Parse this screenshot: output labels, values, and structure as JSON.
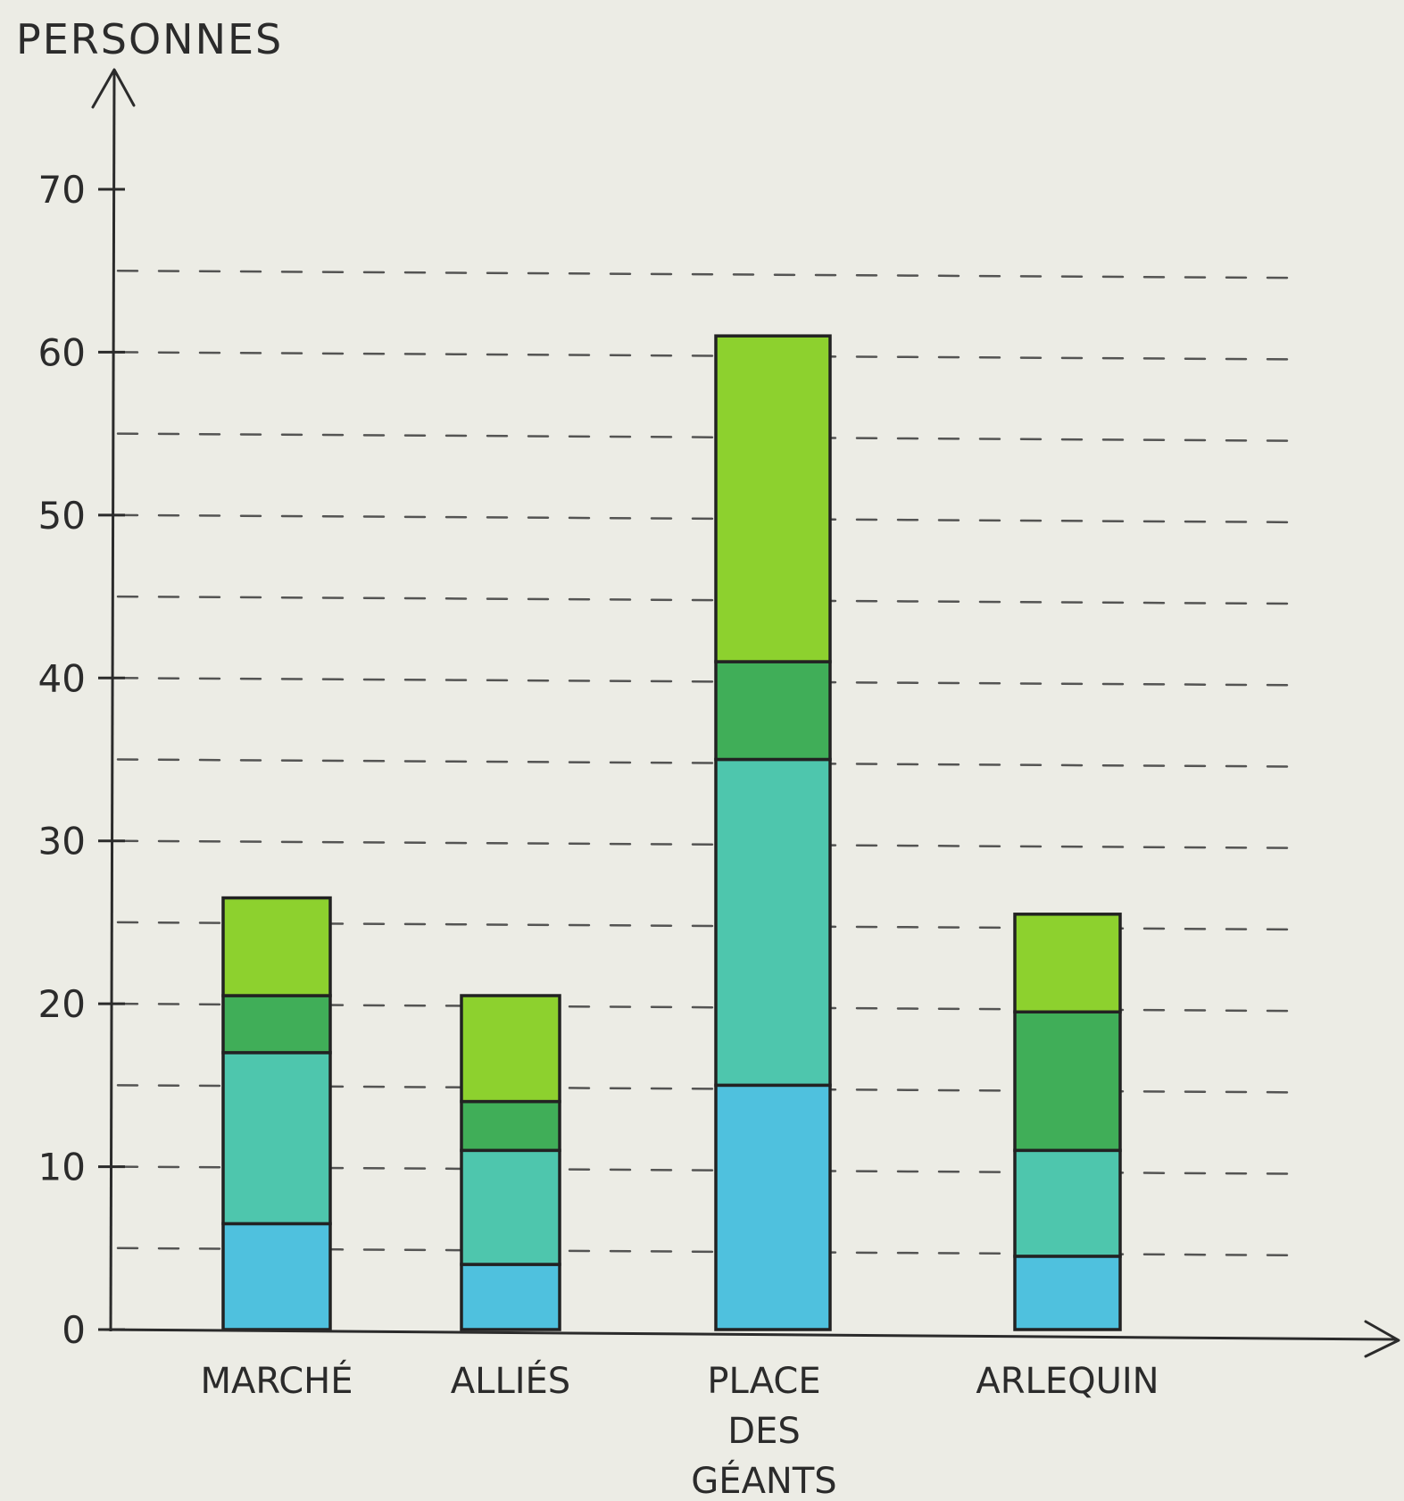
{
  "chart_data": {
    "type": "bar",
    "stacked": true,
    "ylabel": "PERSONNES",
    "xlabel": "",
    "ylim": [
      0,
      70
    ],
    "yticks": [
      0,
      10,
      20,
      30,
      40,
      50,
      60,
      70
    ],
    "grid": "dashed horizontal lines every 5",
    "categories": [
      [
        "MARCHÉ"
      ],
      [
        "ALLIÉS"
      ],
      [
        "PLACE",
        "DES",
        "GÉANTS"
      ],
      [
        "ARLEQUIN"
      ]
    ],
    "series": [
      {
        "color": "#4fc1de",
        "values": [
          6.5,
          4,
          15,
          4.5
        ]
      },
      {
        "color": "#4ec6ad",
        "values": [
          10.5,
          7,
          20,
          6.5
        ]
      },
      {
        "color": "#40ae58",
        "values": [
          3.5,
          3,
          6,
          8.5
        ]
      },
      {
        "color": "#8dd12e",
        "values": [
          6,
          6.5,
          20,
          6
        ]
      }
    ]
  }
}
